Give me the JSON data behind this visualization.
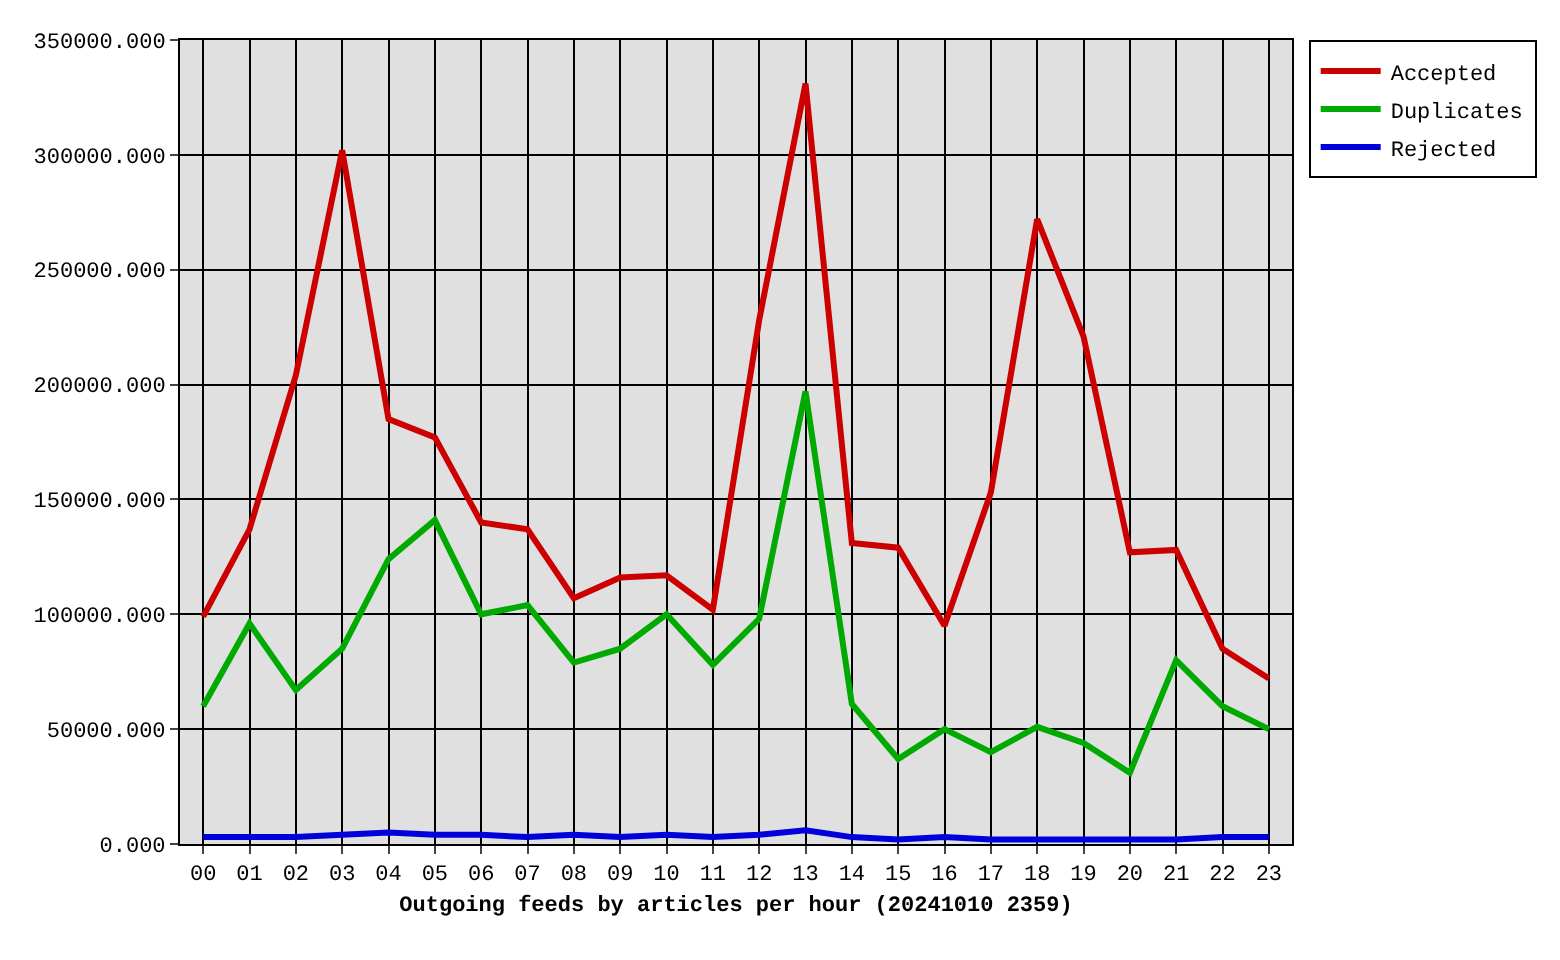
{
  "chart_data": {
    "type": "line",
    "xlabel": "Outgoing feeds by articles per hour (20241010 2359)",
    "categories": [
      "00",
      "01",
      "02",
      "03",
      "04",
      "05",
      "06",
      "07",
      "08",
      "09",
      "10",
      "11",
      "12",
      "13",
      "14",
      "15",
      "16",
      "17",
      "18",
      "19",
      "20",
      "21",
      "22",
      "23"
    ],
    "series": [
      {
        "name": "Accepted",
        "color": "#cc0000",
        "values": [
          99000,
          137000,
          204000,
          302000,
          185000,
          177000,
          140000,
          137000,
          107000,
          116000,
          117000,
          102000,
          228000,
          331000,
          131000,
          129000,
          95000,
          153000,
          272000,
          221000,
          127000,
          128000,
          85000,
          72000
        ]
      },
      {
        "name": "Duplicates",
        "color": "#00aa00",
        "values": [
          60000,
          96000,
          67000,
          85000,
          124000,
          141000,
          100000,
          104000,
          79000,
          85000,
          100000,
          78000,
          98000,
          197000,
          61000,
          37000,
          50000,
          40000,
          51000,
          44000,
          31000,
          80000,
          60000,
          50000
        ]
      },
      {
        "name": "Rejected",
        "color": "#0000dd",
        "values": [
          3000,
          3000,
          3000,
          4000,
          5000,
          4000,
          4000,
          3000,
          4000,
          3000,
          4000,
          3000,
          4000,
          6000,
          3000,
          2000,
          3000,
          2000,
          2000,
          2000,
          2000,
          2000,
          3000,
          3000
        ]
      }
    ],
    "ylim": [
      0,
      350000
    ],
    "yticks": [
      {
        "value": 0,
        "label": "0.000"
      },
      {
        "value": 50000,
        "label": "50000.000"
      },
      {
        "value": 100000,
        "label": "100000.000"
      },
      {
        "value": 150000,
        "label": "150000.000"
      },
      {
        "value": 200000,
        "label": "200000.000"
      },
      {
        "value": 250000,
        "label": "250000.000"
      },
      {
        "value": 300000,
        "label": "300000.000"
      },
      {
        "value": 350000,
        "label": "350000.000"
      }
    ],
    "grid": true,
    "legend": "top right",
    "marker": "none",
    "line_style": "solid"
  }
}
